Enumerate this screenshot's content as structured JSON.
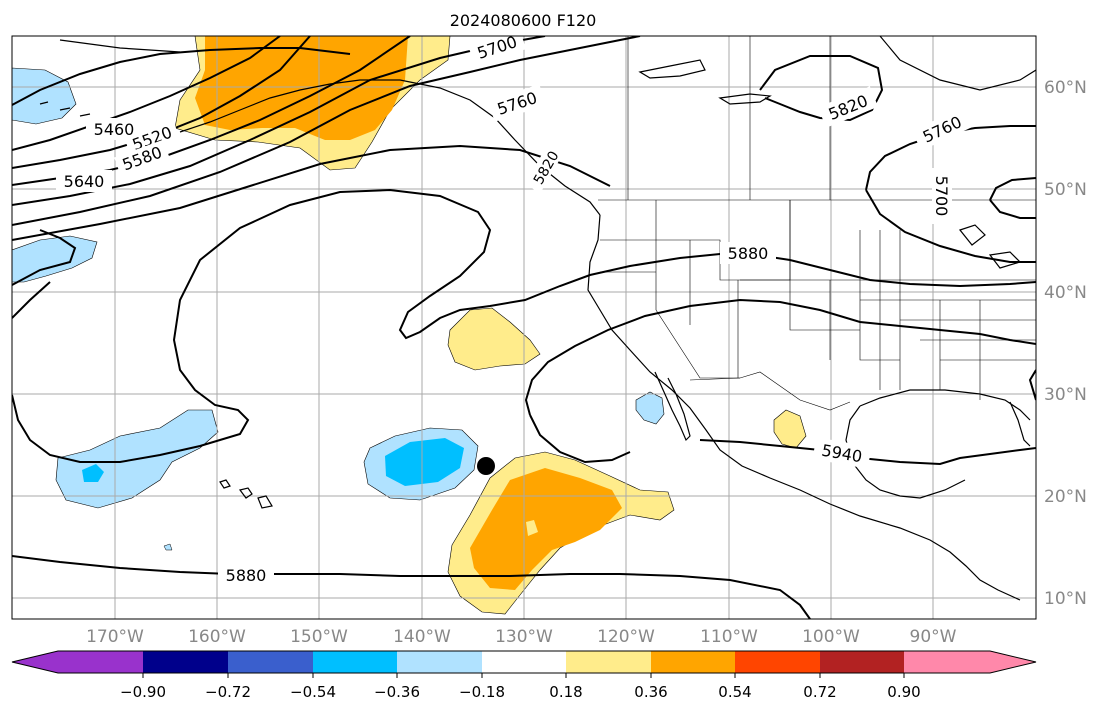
{
  "title": "2024080600 F120",
  "map": {
    "lat_labels": [
      "60°N",
      "50°N",
      "40°N",
      "30°N",
      "20°N",
      "10°N"
    ],
    "lon_labels": [
      "170°W",
      "160°W",
      "150°W",
      "140°W",
      "130°W",
      "120°W",
      "110°W",
      "100°W",
      "90°W"
    ],
    "contour_labels": [
      "5460",
      "5520",
      "5580",
      "5640",
      "5700",
      "5760",
      "5820",
      "5760",
      "5700",
      "5880",
      "5940",
      "5880",
      "5820"
    ],
    "marker": "black-dot"
  },
  "colorbar": {
    "ticks": [
      "−0.90",
      "−0.72",
      "−0.54",
      "−0.36",
      "−0.18",
      "0.18",
      "0.36",
      "0.54",
      "0.72",
      "0.90"
    ],
    "colors": [
      "#9932cc",
      "#00008b",
      "#3a5fcd",
      "#00bfff",
      "#b0e2ff",
      "#ffffff",
      "#ffec8b",
      "#ffa500",
      "#ff4500",
      "#b22222",
      "#ff88aa"
    ]
  }
}
